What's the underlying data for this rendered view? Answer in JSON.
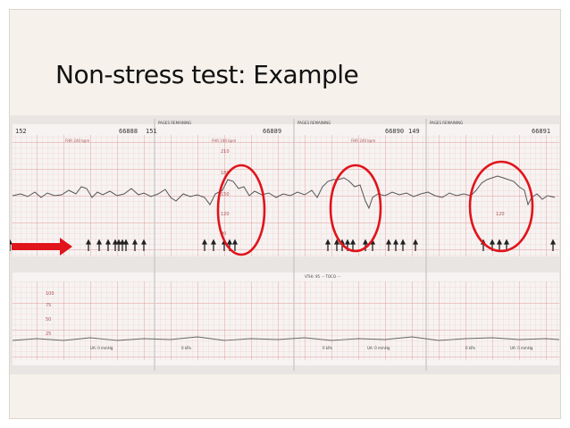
{
  "slide": {
    "title": "Non-stress test: Example"
  },
  "strip": {
    "fhr_top_labels": [
      "152",
      "66888",
      "151",
      "66889",
      "66890",
      "149",
      "66891"
    ],
    "page_marks": [
      "PAGES REMAINING",
      "PAGES REMAINING",
      "PAGES REMAINING"
    ],
    "fhr_scale_labels": [
      "240",
      "210",
      "180",
      "150",
      "120",
      "90",
      "60"
    ],
    "bpm_label": "FHR 240 bpm",
    "toco_scale_labels": [
      "100",
      "75",
      "50",
      "25"
    ],
    "toco_mid_label": "VTHI: 95  ···  TOCO  ···",
    "ua_labels": [
      "UA: 0 mmHg",
      "UA: 0 mmHg",
      "UA: 0 mmHg"
    ],
    "kpa_labels": [
      "0 kPa",
      "0 kPa",
      "0 kPa"
    ]
  },
  "colors": {
    "slide_bg": "#f6f1ea",
    "paper": "#f3f0ef",
    "grid": "#e69a9a",
    "trace": "#555555",
    "circle": "#e0141b",
    "arrow": "#e0141b"
  },
  "annotations": {
    "circles": 3,
    "arrow_direction": "right"
  }
}
